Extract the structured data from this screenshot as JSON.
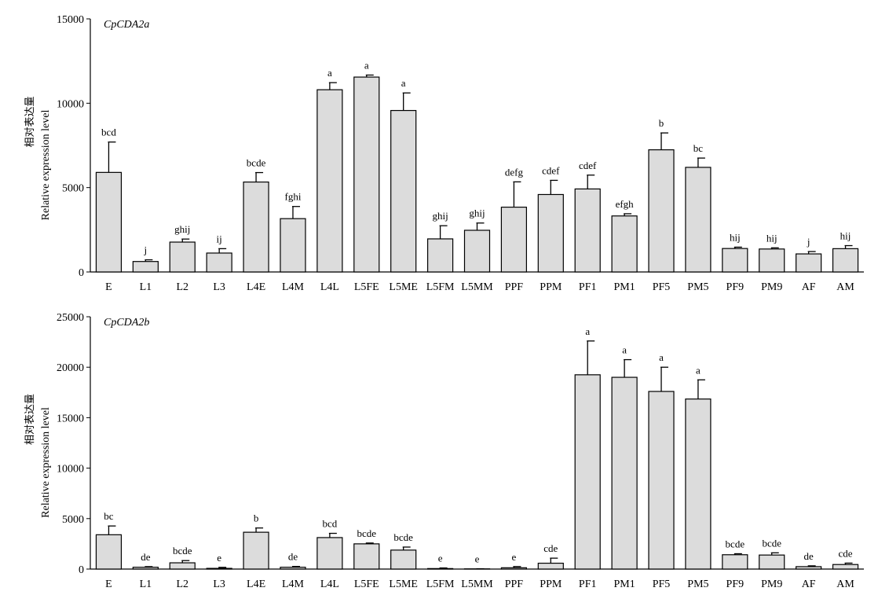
{
  "chart_data": [
    {
      "type": "bar",
      "title": "CpCDA2a",
      "ylabel_cn": "相对表达量",
      "ylabel": "Relative expression level",
      "ylim": [
        0,
        15000
      ],
      "yticks": [
        "0",
        "5000",
        "10000",
        "15000"
      ],
      "bar_color": "#dcdcdc",
      "categories": [
        "E",
        "L1",
        "L2",
        "L3",
        "L4E",
        "L4M",
        "L4L",
        "L5FE",
        "L5ME",
        "L5FM",
        "L5MM",
        "PPF",
        "PPM",
        "PF1",
        "PM1",
        "PF5",
        "PM5",
        "PF9",
        "PM9",
        "AF",
        "AM"
      ],
      "values": [
        5900,
        620,
        1770,
        1120,
        5330,
        3160,
        10800,
        11550,
        9570,
        1960,
        2470,
        3840,
        4590,
        4920,
        3320,
        7240,
        6200,
        1390,
        1360,
        1070,
        1380
      ],
      "errors": [
        1800,
        100,
        180,
        260,
        560,
        720,
        420,
        120,
        1040,
        780,
        430,
        1500,
        840,
        820,
        130,
        1000,
        550,
        80,
        70,
        140,
        180
      ],
      "letters": [
        "bcd",
        "j",
        "ghij",
        "ij",
        "bcde",
        "fghi",
        "a",
        "a",
        "a",
        "ghij",
        "ghij",
        "defg",
        "cdef",
        "cdef",
        "efgh",
        "b",
        "bc",
        "hij",
        "hij",
        "j",
        "hij"
      ]
    },
    {
      "type": "bar",
      "title": "CpCDA2b",
      "ylabel_cn": "相对表达量",
      "ylabel": "Relative expression level",
      "ylim": [
        0,
        25000
      ],
      "yticks": [
        "0",
        "5000",
        "10000",
        "15000",
        "20000",
        "25000"
      ],
      "bar_color": "#dcdcdc",
      "categories": [
        "E",
        "L1",
        "L2",
        "L3",
        "L4E",
        "L4M",
        "L4L",
        "L5FE",
        "L5ME",
        "L5FM",
        "L5MM",
        "PPF",
        "PPM",
        "PF1",
        "PM1",
        "PF5",
        "PM5",
        "PF9",
        "PM9",
        "AF",
        "AM"
      ],
      "values": [
        3400,
        180,
        620,
        70,
        3650,
        180,
        3120,
        2500,
        1880,
        50,
        20,
        130,
        580,
        19250,
        19000,
        17600,
        16850,
        1420,
        1390,
        240,
        450
      ],
      "errors": [
        870,
        60,
        220,
        100,
        420,
        80,
        420,
        80,
        300,
        60,
        10,
        120,
        500,
        3350,
        1750,
        2400,
        1900,
        100,
        220,
        80,
        140
      ],
      "letters": [
        "bc",
        "de",
        "bcde",
        "e",
        "b",
        "de",
        "bcd",
        "bcde",
        "bcde",
        "e",
        "e",
        "e",
        "cde",
        "a",
        "a",
        "a",
        "a",
        "bcde",
        "bcde",
        "de",
        "cde"
      ]
    }
  ]
}
